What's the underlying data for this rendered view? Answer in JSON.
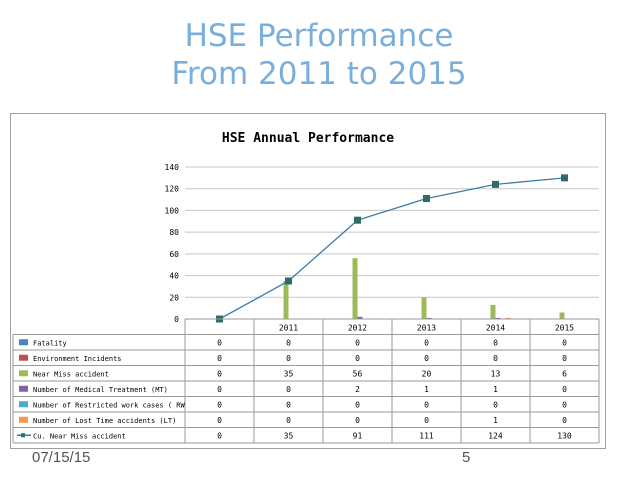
{
  "slide": {
    "title_line1": "HSE Performance",
    "title_line2": "From 2011 to 2015",
    "footer_date": "07/15/15",
    "footer_page": "5"
  },
  "chart_data": {
    "type": "bar",
    "title": "HSE Annual Performance",
    "categories": [
      "",
      "2011",
      "2012",
      "2013",
      "2014",
      "2015"
    ],
    "ylim": [
      0,
      140
    ],
    "yticks": [
      0,
      20,
      40,
      60,
      80,
      100,
      120,
      140
    ],
    "grid": true,
    "legend": "data-table",
    "series": [
      {
        "name": "Fatality",
        "type": "bar",
        "color": "#4f81bd",
        "values": [
          0,
          0,
          0,
          0,
          0,
          0
        ]
      },
      {
        "name": "Environment Incidents",
        "type": "bar",
        "color": "#c0504d",
        "values": [
          0,
          0,
          0,
          0,
          0,
          0
        ]
      },
      {
        "name": "Near Miss accident",
        "type": "bar",
        "color": "#9bbb59",
        "values": [
          0,
          35,
          56,
          20,
          13,
          6
        ]
      },
      {
        "name": "Number of Medical Treatment (MT)",
        "type": "bar",
        "color": "#8064a2",
        "values": [
          0,
          0,
          2,
          1,
          1,
          0
        ]
      },
      {
        "name": "Number of Restricted work cases ( RW",
        "type": "bar",
        "color": "#4bacc6",
        "values": [
          0,
          0,
          0,
          0,
          0,
          0
        ]
      },
      {
        "name": "Number of Lost Time accidents (LT)",
        "type": "bar",
        "color": "#f79646",
        "values": [
          0,
          0,
          0,
          0,
          1,
          0
        ]
      },
      {
        "name": "Cu. Near Miss accident",
        "type": "line",
        "color": "#3d7dab",
        "marker_color": "#2e6b6b",
        "values": [
          0,
          35,
          91,
          111,
          124,
          130
        ]
      }
    ]
  }
}
